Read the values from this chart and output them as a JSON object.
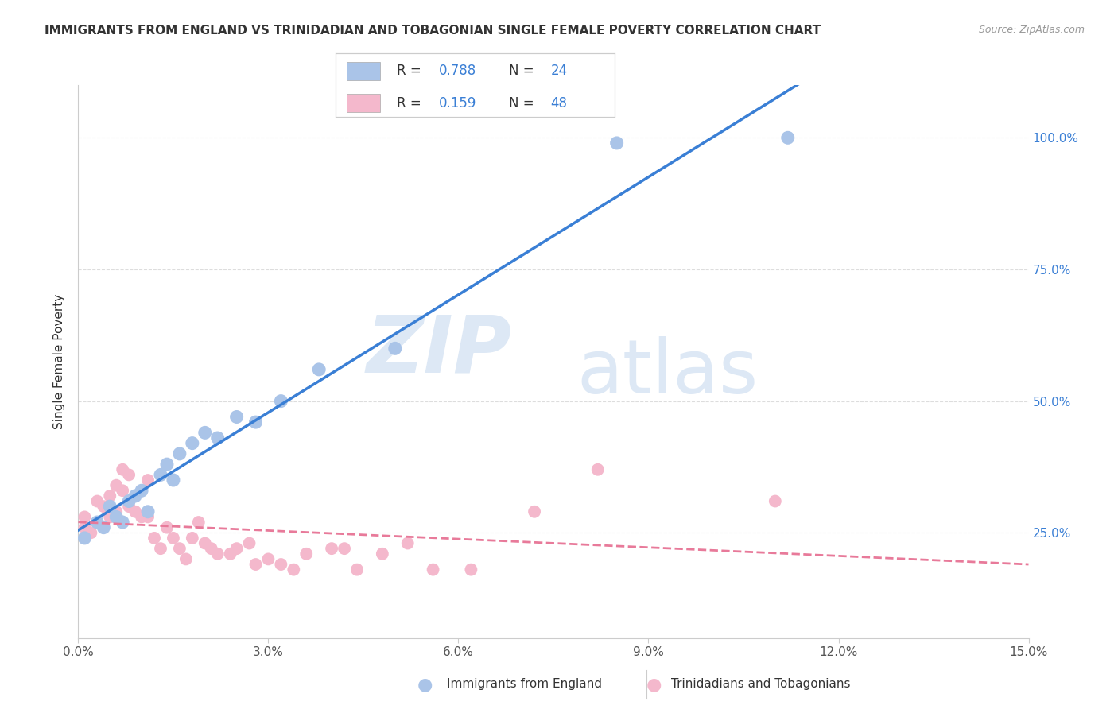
{
  "title": "IMMIGRANTS FROM ENGLAND VS TRINIDADIAN AND TOBAGONIAN SINGLE FEMALE POVERTY CORRELATION CHART",
  "source": "Source: ZipAtlas.com",
  "ylabel": "Single Female Poverty",
  "xlim": [
    0.0,
    0.15
  ],
  "ylim": [
    0.05,
    1.1
  ],
  "yticks_right": [
    0.25,
    0.5,
    0.75,
    1.0
  ],
  "ytick_labels_right": [
    "25.0%",
    "50.0%",
    "75.0%",
    "100.0%"
  ],
  "xticks": [
    0.0,
    0.03,
    0.06,
    0.09,
    0.12,
    0.15
  ],
  "xtick_labels": [
    "0.0%",
    "3.0%",
    "6.0%",
    "9.0%",
    "12.0%",
    "15.0%"
  ],
  "series1_color": "#aac4e8",
  "series2_color": "#f4b8cc",
  "line1_color": "#3a7fd5",
  "line2_color": "#e87a9a",
  "watermark_zip": "ZIP",
  "watermark_atlas": "atlas",
  "blue_x": [
    0.001,
    0.003,
    0.004,
    0.005,
    0.006,
    0.007,
    0.008,
    0.009,
    0.01,
    0.011,
    0.013,
    0.014,
    0.015,
    0.016,
    0.018,
    0.02,
    0.022,
    0.025,
    0.028,
    0.032,
    0.038,
    0.05,
    0.085,
    0.112
  ],
  "blue_y": [
    0.24,
    0.27,
    0.26,
    0.3,
    0.28,
    0.27,
    0.31,
    0.32,
    0.33,
    0.29,
    0.36,
    0.38,
    0.35,
    0.4,
    0.42,
    0.44,
    0.43,
    0.47,
    0.46,
    0.5,
    0.56,
    0.6,
    0.99,
    1.0
  ],
  "pink_x": [
    0.001,
    0.001,
    0.002,
    0.003,
    0.003,
    0.004,
    0.005,
    0.005,
    0.006,
    0.006,
    0.007,
    0.007,
    0.008,
    0.008,
    0.009,
    0.01,
    0.01,
    0.011,
    0.011,
    0.012,
    0.013,
    0.014,
    0.015,
    0.016,
    0.017,
    0.018,
    0.019,
    0.02,
    0.021,
    0.022,
    0.024,
    0.025,
    0.027,
    0.028,
    0.03,
    0.032,
    0.034,
    0.036,
    0.04,
    0.042,
    0.044,
    0.048,
    0.052,
    0.056,
    0.062,
    0.072,
    0.082,
    0.11
  ],
  "pink_y": [
    0.26,
    0.28,
    0.25,
    0.27,
    0.31,
    0.3,
    0.28,
    0.32,
    0.29,
    0.34,
    0.33,
    0.37,
    0.3,
    0.36,
    0.29,
    0.28,
    0.33,
    0.35,
    0.28,
    0.24,
    0.22,
    0.26,
    0.24,
    0.22,
    0.2,
    0.24,
    0.27,
    0.23,
    0.22,
    0.21,
    0.21,
    0.22,
    0.23,
    0.19,
    0.2,
    0.19,
    0.18,
    0.21,
    0.22,
    0.22,
    0.18,
    0.21,
    0.23,
    0.18,
    0.18,
    0.29,
    0.37,
    0.31
  ],
  "background_color": "#ffffff",
  "grid_color": "#dddddd",
  "blue_line_start_x": 0.0,
  "blue_line_end_x": 0.15,
  "pink_line_start_x": 0.0,
  "pink_line_end_x": 0.15
}
